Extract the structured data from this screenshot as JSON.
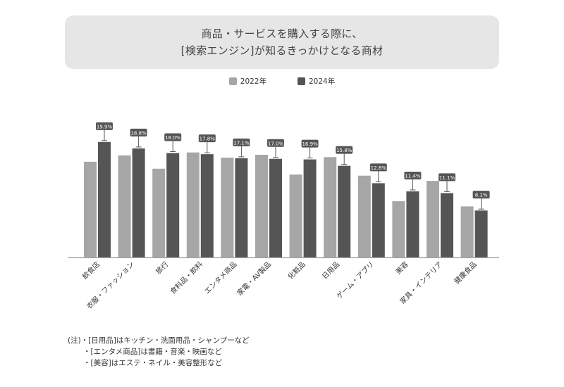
{
  "title": {
    "line1": "商品・サービスを購入する際に、",
    "line2": "[検索エンジン]が知るきっかけとなる商材"
  },
  "legend": [
    {
      "label": "2022年",
      "color": "#a6a6a6"
    },
    {
      "label": "2024年",
      "color": "#555555"
    }
  ],
  "notes": [
    "(注)・[日用品]はキッチン・洗面用品・シャンプーなど",
    "・[エンタメ商品]は書籍・音楽・映画など",
    "・[美容]はエステ・ネイル・美容整形など"
  ],
  "chart_data": {
    "type": "bar",
    "categories": [
      "飲食店",
      "衣服・ファッション",
      "旅行",
      "食料品・飲料",
      "エンタメ商品",
      "家電・AV製品",
      "化粧品",
      "日用品",
      "ゲーム・アプリ",
      "美容",
      "家具・インテリア",
      "健康食品"
    ],
    "series": [
      {
        "name": "2022年",
        "color": "#a6a6a6",
        "values": [
          16.5,
          17.6,
          15.3,
          18.1,
          17.2,
          17.7,
          14.3,
          17.3,
          14.1,
          9.7,
          13.2,
          8.8
        ]
      },
      {
        "name": "2024年",
        "color": "#555555",
        "values": [
          19.9,
          18.8,
          18.0,
          17.8,
          17.1,
          17.0,
          16.9,
          15.8,
          12.8,
          11.4,
          11.1,
          8.1
        ],
        "labels": [
          "19.9%",
          "18.8%",
          "18.0%",
          "17.8%",
          "17.1%",
          "17.0%",
          "16.9%",
          "15.8%",
          "12.8%",
          "11.4%",
          "11.1%",
          "8.1%"
        ]
      }
    ],
    "ylim": [
      0,
      21
    ],
    "grid": false,
    "legend_position": "top-center"
  }
}
